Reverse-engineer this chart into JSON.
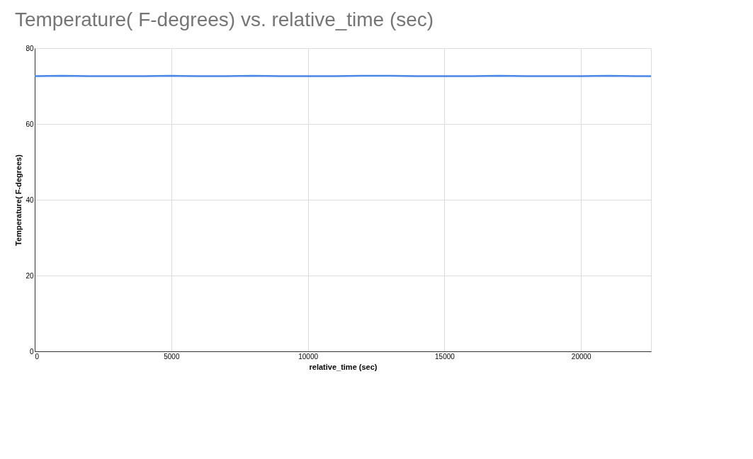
{
  "chart_data": {
    "type": "line",
    "title": "Temperature( F-degrees) vs. relative_time (sec)",
    "xlabel": "relative_time (sec)",
    "ylabel": "Temperature( F-degrees)",
    "x": [
      0,
      1000,
      2000,
      3000,
      4000,
      5000,
      6000,
      7000,
      8000,
      9000,
      10000,
      11000,
      12000,
      13000,
      14000,
      15000,
      16000,
      17000,
      18000,
      19000,
      20000,
      21000,
      22000,
      22560
    ],
    "series": [
      {
        "color": "#4a86e8",
        "values": [
          72.6,
          72.7,
          72.6,
          72.6,
          72.6,
          72.7,
          72.6,
          72.6,
          72.7,
          72.6,
          72.6,
          72.6,
          72.7,
          72.7,
          72.6,
          72.6,
          72.6,
          72.7,
          72.6,
          72.6,
          72.6,
          72.7,
          72.6,
          72.6
        ]
      }
    ],
    "xlim": [
      0,
      22560
    ],
    "xticks": [
      0,
      5000,
      10000,
      15000,
      20000
    ],
    "ylim": [
      0,
      80
    ],
    "yticks": [
      0,
      20,
      40,
      60,
      80
    ],
    "grid": true,
    "legend": false,
    "marker": "none",
    "line_style": "solid"
  }
}
